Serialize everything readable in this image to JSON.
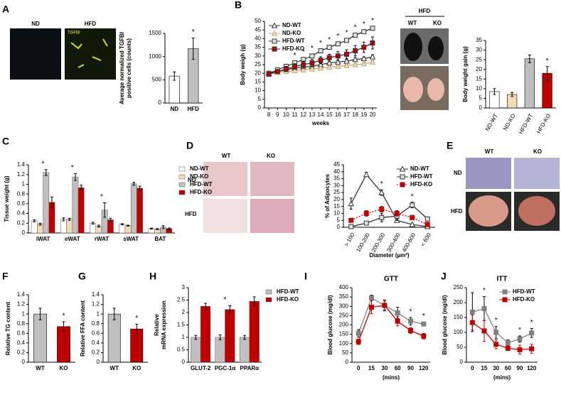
{
  "figure": {
    "panel_labels": [
      "A",
      "B",
      "C",
      "D",
      "E",
      "F",
      "G",
      "H",
      "I",
      "J"
    ],
    "image_labels": {
      "a_nd": "ND",
      "a_hfd": "HFD",
      "a_stain": "TGFBI",
      "b_hfd": "HFD",
      "b_wt": "WT",
      "b_ko": "KO",
      "d_wt": "WT",
      "d_ko": "KO",
      "d_nd": "ND",
      "d_hfd": "HFD",
      "e_wt": "WT",
      "e_ko": "KO",
      "e_nd": "ND",
      "e_hfd": "HFD"
    }
  },
  "chart_data": [
    {
      "type": "bar",
      "ylabel": [
        "Average normalized TGFBI",
        "positive cells (counts)"
      ],
      "categories": [
        "ND",
        "HFD"
      ],
      "values": [
        580,
        1170
      ],
      "errors": [
        90,
        230
      ],
      "colors": [
        "#ffffff",
        "#bfbfbf"
      ],
      "ylim": [
        0,
        1500
      ],
      "yticks": [
        0,
        500,
        1000,
        1500
      ],
      "annotations": [
        {
          "text": "*",
          "category": "HFD"
        }
      ]
    },
    {
      "type": "line",
      "ylabel": [
        "Body weigh (g)"
      ],
      "xlabel": "weeks",
      "x": [
        8,
        9,
        10,
        11,
        12,
        13,
        14,
        15,
        16,
        17,
        18,
        19,
        20
      ],
      "xlim": [
        7.5,
        20.5
      ],
      "xticks": [
        8,
        9,
        10,
        11,
        12,
        13,
        14,
        15,
        16,
        17,
        18,
        19,
        20
      ],
      "ylim": [
        0,
        50
      ],
      "yticks": [
        0,
        5,
        10,
        15,
        20,
        25,
        30,
        35,
        40,
        45,
        50
      ],
      "legend": "upper left",
      "series": [
        {
          "name": "ND-WT",
          "color": "#333333",
          "marker": "triangle",
          "marker_fill": "#ffffff",
          "values": [
            20,
            21,
            22,
            23,
            23.5,
            24,
            25,
            26,
            26.5,
            27,
            28,
            28.5,
            29.5
          ],
          "errors": [
            1,
            1,
            1,
            1,
            1,
            1,
            1,
            1,
            1,
            1,
            1,
            1,
            1.2
          ]
        },
        {
          "name": "ND-KO",
          "color": "#c8a87a",
          "marker": "triangle",
          "marker_fill": "#f3dcb5",
          "values": [
            19.5,
            20.5,
            21,
            21.5,
            22,
            22.5,
            23,
            23.5,
            24,
            24.5,
            25,
            25.5,
            26.5
          ],
          "errors": [
            0.8,
            0.8,
            0.8,
            0.8,
            0.8,
            0.8,
            0.8,
            0.8,
            0.8,
            0.8,
            0.8,
            0.8,
            0.8
          ]
        },
        {
          "name": "HFD-WT",
          "color": "#333333",
          "marker": "square",
          "marker_fill": "#e0e0e0",
          "values": [
            20,
            22,
            24,
            26,
            28,
            30,
            33,
            35,
            37,
            39,
            42,
            44,
            46
          ],
          "errors": [
            1,
            1,
            1,
            1,
            1,
            1,
            1,
            1,
            1,
            1,
            1,
            1,
            1
          ]
        },
        {
          "name": "HFD-KO",
          "color": "#333333",
          "marker": "square",
          "marker_fill": "#c00000",
          "values": [
            19.5,
            21,
            22.5,
            24,
            25,
            26,
            27.5,
            29,
            30,
            31,
            33,
            35,
            37.5
          ],
          "errors": [
            1,
            1,
            1.5,
            1.5,
            2,
            2,
            2,
            2,
            2.5,
            2.5,
            3,
            3,
            3.5
          ]
        }
      ],
      "annotations": [
        {
          "text": "*",
          "x": 11
        },
        {
          "text": "*",
          "x": 12
        },
        {
          "text": "*",
          "x": 13
        },
        {
          "text": "*",
          "x": 14
        },
        {
          "text": "*",
          "x": 15
        },
        {
          "text": "*",
          "x": 16
        },
        {
          "text": "*",
          "x": 17
        },
        {
          "text": "*",
          "x": 18
        },
        {
          "text": "*",
          "x": 19
        },
        {
          "text": "*",
          "x": 20
        }
      ]
    },
    {
      "type": "bar",
      "ylabel": [
        "Body weight gain (g)"
      ],
      "categories": [
        "ND-WT",
        "ND-KO",
        "HFD-WT",
        "HFD-KO"
      ],
      "values": [
        8.5,
        7,
        25.5,
        18
      ],
      "errors": [
        1.5,
        1,
        2,
        3.5
      ],
      "colors": [
        "#ffffff",
        "#f3dcb5",
        "#bfbfbf",
        "#c00000"
      ],
      "ylim": [
        0,
        35
      ],
      "yticks": [
        0,
        5,
        10,
        15,
        20,
        25,
        30,
        35
      ],
      "annotations": [
        {
          "text": "*",
          "category": "HFD-KO"
        }
      ]
    },
    {
      "type": "bar",
      "ylabel": [
        "Tissue weight (g)"
      ],
      "categories": [
        "iWAT",
        "eWAT",
        "rWAT",
        "sWAT",
        "BAT"
      ],
      "ylim": [
        0,
        1.4
      ],
      "yticks": [
        0,
        0.2,
        0.4,
        0.6,
        0.8,
        1,
        1.2,
        1.4
      ],
      "legend": "right",
      "series": [
        {
          "name": "ND-WT",
          "color": "#ffffff",
          "values": [
            0.25,
            0.28,
            0.2,
            0.18,
            0.09
          ],
          "errors": [
            0.02,
            0.03,
            0.02,
            0.01,
            0.01
          ]
        },
        {
          "name": "ND-KO",
          "color": "#f3dcb5",
          "values": [
            0.18,
            0.28,
            0.14,
            0.15,
            0.08
          ],
          "errors": [
            0.02,
            0.02,
            0.02,
            0.01,
            0.01
          ]
        },
        {
          "name": "HFD-WT",
          "color": "#bfbfbf",
          "values": [
            1.24,
            1.15,
            0.47,
            1.01,
            0.12
          ],
          "errors": [
            0.06,
            0.07,
            0.15,
            0.03,
            0.03
          ]
        },
        {
          "name": "HFD-KO",
          "color": "#c00000",
          "values": [
            0.63,
            0.93,
            0.27,
            0.92,
            0.09
          ],
          "errors": [
            0.11,
            0.05,
            0.03,
            0.04,
            0.01
          ]
        }
      ],
      "annotations": [
        {
          "text": "*",
          "category": "iWAT"
        },
        {
          "text": "*",
          "category": "eWAT"
        },
        {
          "text": "*",
          "category": "rWAT"
        }
      ]
    },
    {
      "type": "line",
      "ylabel": [
        "% of Adipocytes"
      ],
      "xlabel": "Diameter (µm²)",
      "categories": [
        "> 100",
        "100-200",
        "200-300",
        "300-400",
        "400-600",
        "< 600"
      ],
      "ylim": [
        0,
        45
      ],
      "yticks": [
        0,
        5,
        10,
        15,
        20,
        25,
        30,
        35,
        40,
        45
      ],
      "legend": "upper right",
      "series": [
        {
          "name": "ND-WT",
          "color": "#333333",
          "marker": "triangle",
          "marker_fill": "#ffffff",
          "values": [
            17,
            38,
            25,
            5,
            2,
            0.5
          ],
          "errors": [
            4,
            1.5,
            2,
            1,
            0.5,
            0.3
          ]
        },
        {
          "name": "HFD-WT",
          "color": "#333333",
          "marker": "square",
          "marker_fill": "#e0e0e0",
          "values": [
            0.5,
            3,
            7,
            8,
            16,
            6
          ],
          "errors": [
            0.3,
            1,
            3,
            3,
            2,
            1.5
          ]
        },
        {
          "name": "HFD-KO",
          "color": "#c00000",
          "dash": true,
          "marker": "square",
          "marker_fill": "#c00000",
          "values": [
            5,
            10,
            13,
            10,
            7,
            2
          ],
          "errors": [
            1,
            2,
            2,
            2,
            1.5,
            0.5
          ]
        }
      ],
      "annotations": [
        {
          "text": "*",
          "category": "200-300"
        },
        {
          "text": "*",
          "category": "400-600"
        }
      ]
    },
    {
      "type": "bar",
      "ylabel": [
        "Relative TG content"
      ],
      "categories": [
        "WT",
        "KO"
      ],
      "values": [
        1,
        0.74
      ],
      "errors": [
        0.12,
        0.1
      ],
      "colors": [
        "#bfbfbf",
        "#c00000"
      ],
      "ylim": [
        0,
        1.4
      ],
      "yticks": [
        0,
        0.2,
        0.4,
        0.6,
        0.8,
        1,
        1.2,
        1.4
      ],
      "annotations": [
        {
          "text": "*",
          "category": "KO"
        }
      ]
    },
    {
      "type": "bar",
      "ylabel": [
        "Relative FFA content"
      ],
      "categories": [
        "WT",
        "KO"
      ],
      "values": [
        1,
        0.69
      ],
      "errors": [
        0.12,
        0.1
      ],
      "colors": [
        "#bfbfbf",
        "#c00000"
      ],
      "ylim": [
        0,
        1.4
      ],
      "yticks": [
        0,
        0.2,
        0.4,
        0.6,
        0.8,
        1,
        1.2,
        1.4
      ],
      "annotations": [
        {
          "text": "*",
          "category": "KO"
        }
      ]
    },
    {
      "type": "bar",
      "ylabel": [
        "Relative",
        "mRNA expression"
      ],
      "categories": [
        "GLUT-2",
        "PGC-1α",
        "PPARα"
      ],
      "ylim": [
        0,
        3
      ],
      "yticks": [
        0,
        0.5,
        1,
        1.5,
        2,
        2.5,
        3
      ],
      "legend": "right",
      "series": [
        {
          "name": "HFD-WT",
          "color": "#bfbfbf",
          "values": [
            1,
            1,
            1
          ],
          "errors": [
            0.08,
            0.1,
            0.08
          ]
        },
        {
          "name": "HFD-KO",
          "color": "#c00000",
          "values": [
            2.25,
            2.12,
            2.45
          ],
          "errors": [
            0.12,
            0.15,
            0.18
          ]
        }
      ],
      "annotations": [
        {
          "text": "*",
          "category": "PGC-1α"
        }
      ]
    },
    {
      "type": "line",
      "title": "GTT",
      "ylabel": [
        "Blood glucose (mg/dl)"
      ],
      "xlabel": "(mins)",
      "categories": [
        "0",
        "15",
        "30",
        "60",
        "90",
        "120"
      ],
      "ylim": [
        0,
        400
      ],
      "yticks": [
        0,
        50,
        100,
        150,
        200,
        250,
        300,
        350,
        400
      ],
      "series": [
        {
          "name": "HFD-WT",
          "color": "#808080",
          "marker": "square",
          "marker_fill": "#808080",
          "values": [
            155,
            345,
            305,
            265,
            220,
            205
          ],
          "errors": [
            20,
            15,
            25,
            30,
            20,
            10
          ]
        },
        {
          "name": "HFD-KO",
          "color": "#c00000",
          "marker": "square",
          "marker_fill": "#c00000",
          "values": [
            110,
            295,
            305,
            220,
            170,
            140
          ],
          "errors": [
            15,
            35,
            30,
            25,
            15,
            15
          ]
        }
      ],
      "annotations": [
        {
          "text": "*",
          "category": "90"
        },
        {
          "text": "*",
          "category": "120"
        }
      ]
    },
    {
      "type": "line",
      "title": "ITT",
      "ylabel": [
        "Blood glucose (mg/dl)"
      ],
      "xlabel": "(mins)",
      "categories": [
        "0",
        "15",
        "30",
        "60",
        "90",
        "120"
      ],
      "ylim": [
        0,
        250
      ],
      "yticks": [
        0,
        50,
        100,
        150,
        200,
        250
      ],
      "legend": "upper right",
      "series": [
        {
          "name": "HFD-WT",
          "color": "#808080",
          "marker": "square",
          "marker_fill": "#808080",
          "values": [
            168,
            180,
            100,
            65,
            78,
            98
          ],
          "errors": [
            65,
            40,
            20,
            10,
            10,
            15
          ]
        },
        {
          "name": "HFD-KO",
          "color": "#c00000",
          "marker": "square",
          "marker_fill": "#c00000",
          "values": [
            133,
            105,
            60,
            47,
            42,
            45
          ],
          "errors": [
            25,
            35,
            15,
            8,
            15,
            15
          ]
        }
      ],
      "annotations": [
        {
          "text": "*",
          "category": "15"
        },
        {
          "text": "*",
          "category": "30"
        },
        {
          "text": "*",
          "category": "90"
        },
        {
          "text": "*",
          "category": "120"
        }
      ]
    }
  ]
}
